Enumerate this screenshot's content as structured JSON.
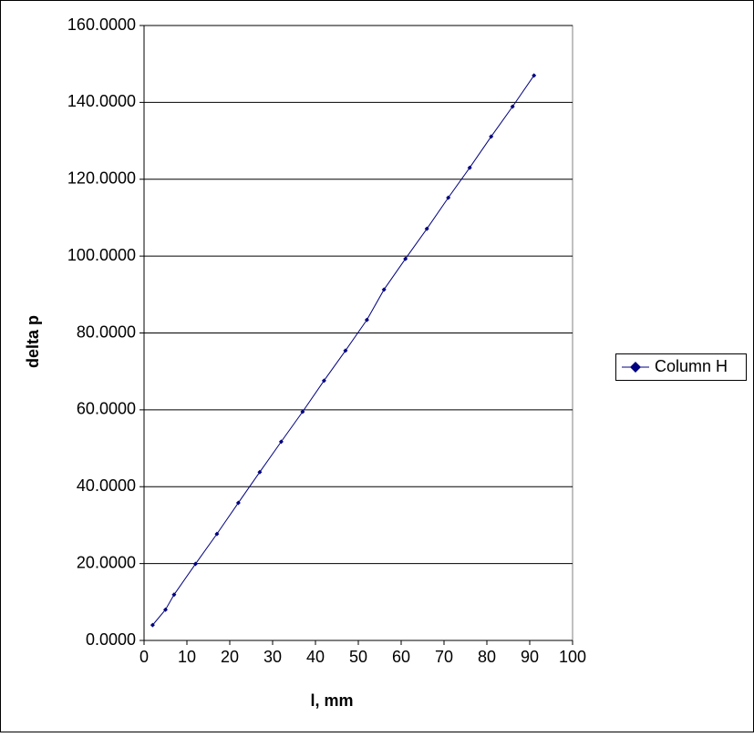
{
  "chart_data": {
    "type": "line",
    "x_label": "l, mm",
    "y_label": "delta p",
    "x": [
      2,
      5,
      7,
      12,
      17,
      22,
      27,
      32,
      37,
      42,
      47,
      52,
      56,
      61,
      66,
      71,
      76,
      81,
      86,
      91
    ],
    "series": [
      {
        "name": "Column H",
        "color": "#000080",
        "values": [
          4.0,
          8.0,
          11.9,
          19.9,
          27.7,
          35.8,
          43.8,
          51.7,
          59.5,
          67.6,
          75.4,
          83.4,
          91.3,
          99.3,
          107.1,
          115.2,
          123.0,
          131.1,
          138.9,
          147.0
        ]
      }
    ],
    "xlim": [
      0,
      100
    ],
    "xticks": [
      0,
      10,
      20,
      30,
      40,
      50,
      60,
      70,
      80,
      90,
      100
    ],
    "ylim": [
      0,
      160
    ],
    "yticks": [
      {
        "value": 0,
        "label": "0.0000"
      },
      {
        "value": 20,
        "label": "20.0000"
      },
      {
        "value": 40,
        "label": "40.0000"
      },
      {
        "value": 60,
        "label": "60.0000"
      },
      {
        "value": 80,
        "label": "80.0000"
      },
      {
        "value": 100,
        "label": "100.0000"
      },
      {
        "value": 120,
        "label": "120.0000"
      },
      {
        "value": 140,
        "label": "140.0000"
      },
      {
        "value": 160,
        "label": "160.0000"
      }
    ],
    "grid": true,
    "legend": "right"
  }
}
